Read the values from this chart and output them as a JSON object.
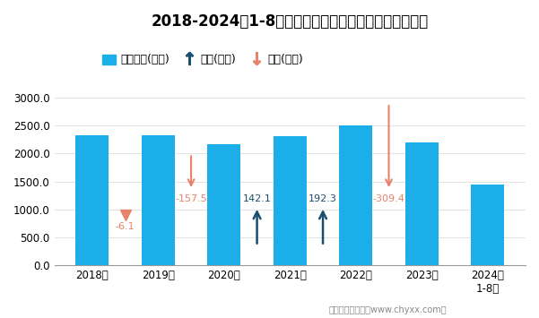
{
  "title": "2018-2024年1-8月全国农副食品加工业出口货值统计图",
  "categories": [
    "2018年",
    "2019年",
    "2020年",
    "2021年",
    "2022年",
    "2023年",
    "2024年\n1-8月"
  ],
  "values": [
    2330,
    2323.9,
    2166.4,
    2308.5,
    2500.8,
    2191.4,
    1450
  ],
  "bar_color": "#1BAEE8",
  "increase_color": "#1A4E6E",
  "decrease_color": "#E8826A",
  "ylim": [
    0,
    3500
  ],
  "yticks": [
    0.0,
    500.0,
    1000.0,
    1500.0,
    2000.0,
    2500.0,
    3000.0
  ],
  "footer": "制图：智研咨询（www.chyxx.com）",
  "legend_bar_label": "出口货值(亿元)",
  "legend_up_label": "增加(亿元)",
  "legend_down_label": "减少(亿元)"
}
